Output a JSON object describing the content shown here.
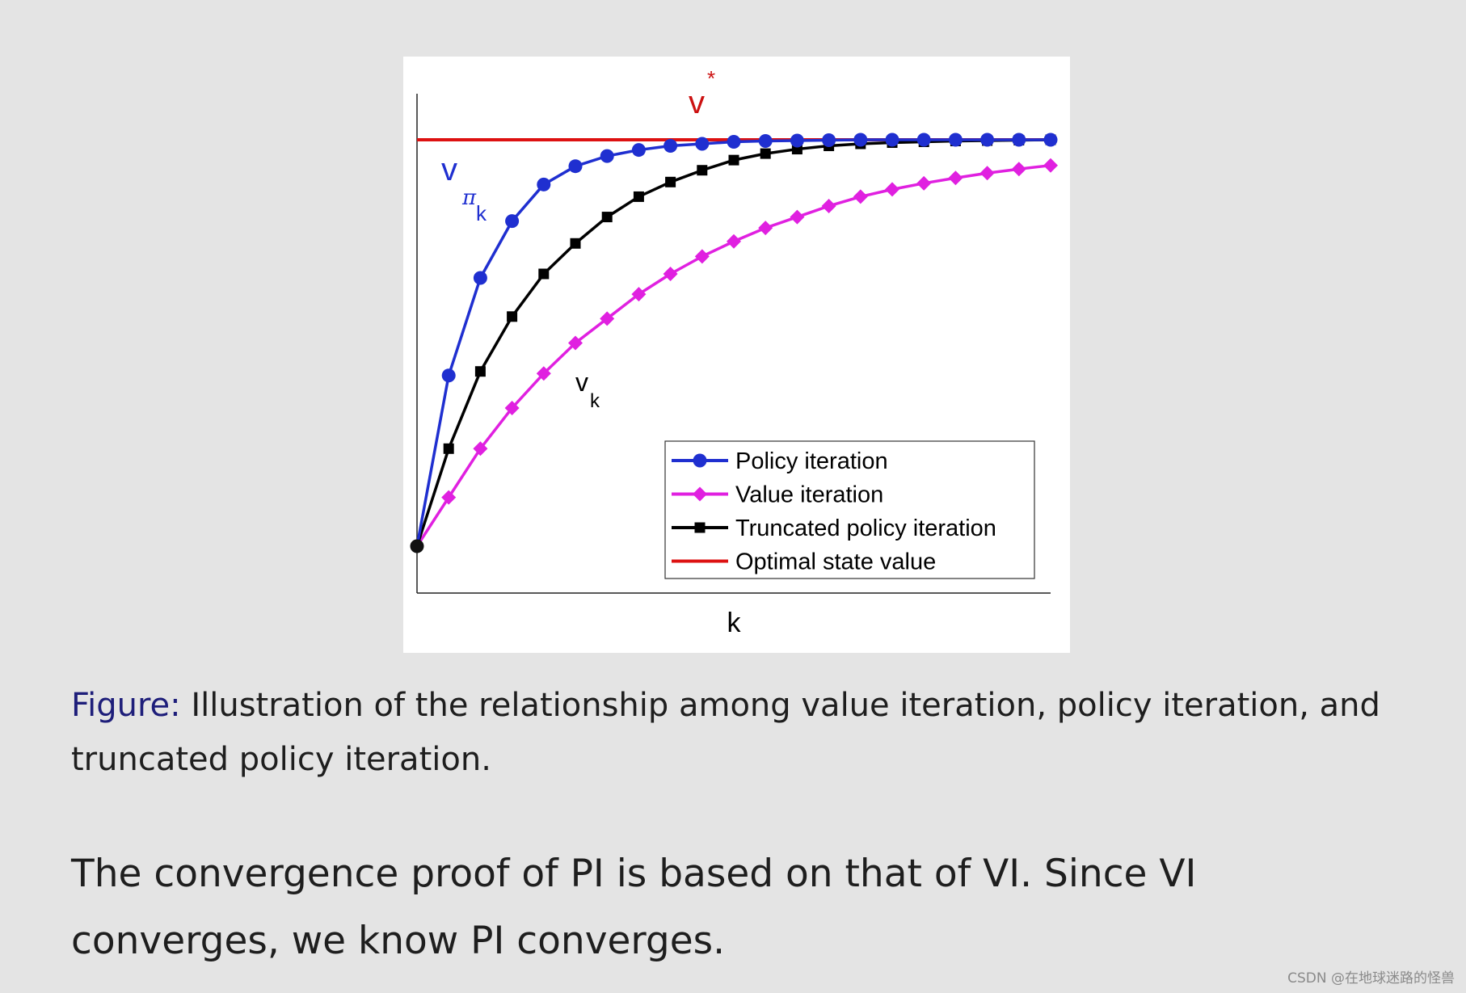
{
  "chart_data": {
    "type": "line",
    "title": "",
    "xlabel": "k",
    "ylabel": "",
    "xlim": [
      0,
      20
    ],
    "ylim": [
      0,
      1
    ],
    "grid": false,
    "legend_position": "bottom-right",
    "x": [
      0,
      1,
      2,
      3,
      4,
      5,
      6,
      7,
      8,
      9,
      10,
      11,
      12,
      13,
      14,
      15,
      16,
      17,
      18,
      19,
      20
    ],
    "series": [
      {
        "name": "Policy iteration",
        "color": "#1f2fd0",
        "marker": "circle",
        "values": [
          0,
          0.42,
          0.66,
          0.8,
          0.89,
          0.935,
          0.96,
          0.975,
          0.985,
          0.99,
          0.995,
          0.997,
          0.998,
          0.999,
          1,
          1,
          1,
          1,
          1,
          1,
          1
        ]
      },
      {
        "name": "Value iteration",
        "color": "#e020e0",
        "marker": "diamond",
        "values": [
          0,
          0.12,
          0.24,
          0.34,
          0.425,
          0.5,
          0.56,
          0.62,
          0.67,
          0.713,
          0.75,
          0.783,
          0.81,
          0.837,
          0.86,
          0.878,
          0.893,
          0.906,
          0.918,
          0.928,
          0.937
        ]
      },
      {
        "name": "Truncated policy iteration",
        "color": "#000000",
        "marker": "square",
        "values": [
          0,
          0.24,
          0.43,
          0.565,
          0.67,
          0.745,
          0.81,
          0.86,
          0.896,
          0.925,
          0.95,
          0.966,
          0.977,
          0.985,
          0.99,
          0.993,
          0.995,
          0.997,
          0.998,
          0.999,
          1
        ]
      },
      {
        "name": "Optimal state value",
        "color": "#dd1111",
        "marker": "none",
        "values": [
          1,
          1,
          1,
          1,
          1,
          1,
          1,
          1,
          1,
          1,
          1,
          1,
          1,
          1,
          1,
          1,
          1,
          1,
          1,
          1,
          1
        ]
      }
    ],
    "annotations": [
      {
        "main": "v",
        "sup": "*",
        "sub": "",
        "color": "#cc1111",
        "near_series": "Optimal state value"
      },
      {
        "main": "v",
        "sub": "π",
        "subsub": "k",
        "color": "#1f2fd0",
        "near_series": "Policy iteration"
      },
      {
        "main": "v",
        "sub": "k",
        "color": "#000000",
        "near_series": "Value iteration"
      }
    ]
  },
  "caption": {
    "label": "Figure:",
    "text": " Illustration of the relationship among value iteration, policy iteration, and truncated policy iteration."
  },
  "body_text": "The convergence proof of PI is based on that of VI. Since VI converges, we know PI converges.",
  "watermark": "CSDN @在地球迷路的怪兽"
}
